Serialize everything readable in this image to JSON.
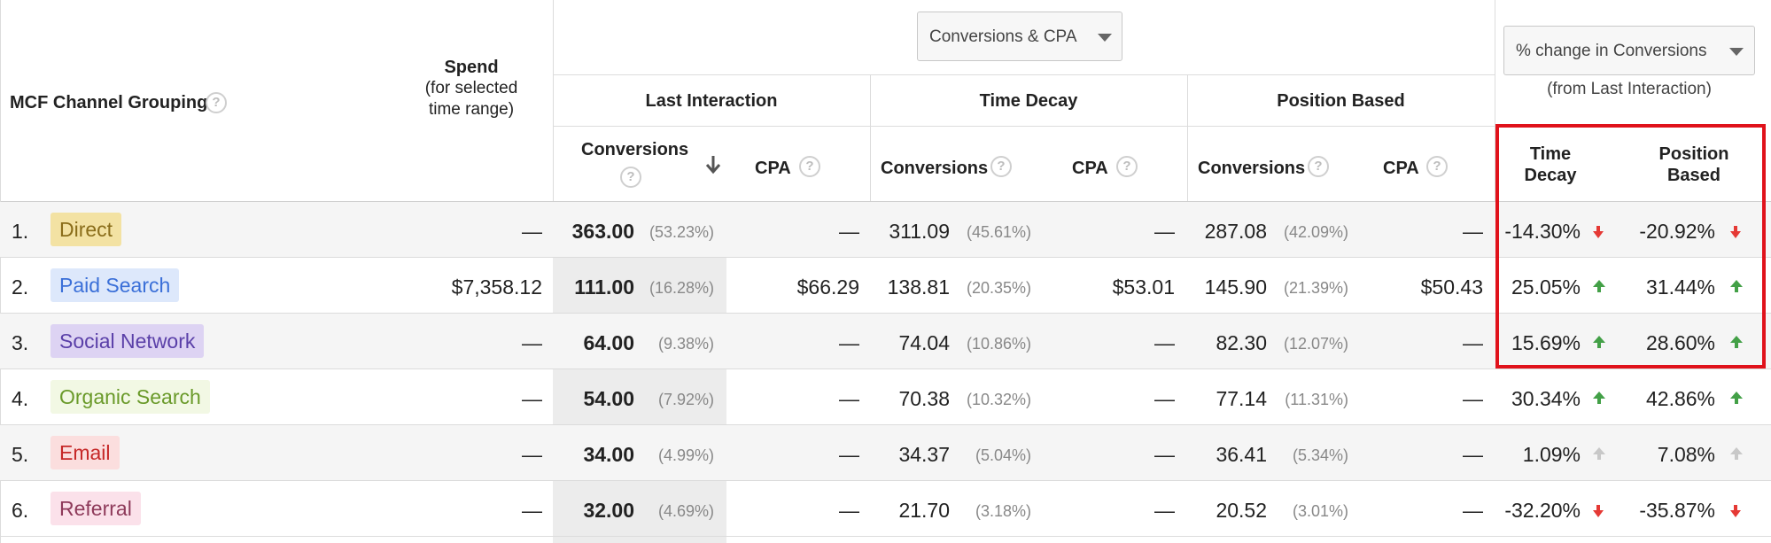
{
  "header": {
    "mcf_label": "MCF Channel Grouping",
    "spend_label": "Spend",
    "spend_sub1": "(for selected",
    "spend_sub2": "time range)",
    "metric_dropdown": "Conversions & CPA",
    "compare_dropdown": "% change in Conversions",
    "compare_sub": "(from Last Interaction)",
    "models": [
      "Last Interaction",
      "Time Decay",
      "Position Based"
    ],
    "conversions_label": "Conversions",
    "cpa_label": "CPA",
    "change_cols": [
      {
        "line1": "Time",
        "line2": "Decay"
      },
      {
        "line1": "Position",
        "line2": "Based"
      }
    ],
    "help_glyph": "?"
  },
  "colors": {
    "highlight_border": "#e0121b",
    "sorted_column_bg": "#ececec",
    "up_arrow": "#43a047",
    "down_arrow": "#e53935",
    "neutral_arrow": "#c8c8c8"
  },
  "rows": [
    {
      "idx": "1.",
      "channel": "Direct",
      "tag_bg": "#f3e2a3",
      "tag_fg": "#8a6d1a",
      "spend": "—",
      "li_conv": "363.00",
      "li_pct": "(53.23%)",
      "li_cpa": "—",
      "td_conv": "311.09",
      "td_pct": "(45.61%)",
      "td_cpa": "—",
      "pb_conv": "287.08",
      "pb_pct": "(42.09%)",
      "pb_cpa": "—",
      "chg_td": "-14.30%",
      "chg_td_dir": "down",
      "chg_pb": "-20.92%",
      "chg_pb_dir": "down"
    },
    {
      "idx": "2.",
      "channel": "Paid Search",
      "tag_bg": "#dde8fb",
      "tag_fg": "#3a6fd8",
      "spend": "$7,358.12",
      "li_conv": "111.00",
      "li_pct": "(16.28%)",
      "li_cpa": "$66.29",
      "td_conv": "138.81",
      "td_pct": "(20.35%)",
      "td_cpa": "$53.01",
      "pb_conv": "145.90",
      "pb_pct": "(21.39%)",
      "pb_cpa": "$50.43",
      "chg_td": "25.05%",
      "chg_td_dir": "up",
      "chg_pb": "31.44%",
      "chg_pb_dir": "up"
    },
    {
      "idx": "3.",
      "channel": "Social Network",
      "tag_bg": "#ddd3f3",
      "tag_fg": "#5a3fa8",
      "spend": "—",
      "li_conv": "64.00",
      "li_pct": "(9.38%)",
      "li_cpa": "—",
      "td_conv": "74.04",
      "td_pct": "(10.86%)",
      "td_cpa": "—",
      "pb_conv": "82.30",
      "pb_pct": "(12.07%)",
      "pb_cpa": "—",
      "chg_td": "15.69%",
      "chg_td_dir": "up",
      "chg_pb": "28.60%",
      "chg_pb_dir": "up"
    },
    {
      "idx": "4.",
      "channel": "Organic Search",
      "tag_bg": "#f2f8e4",
      "tag_fg": "#6a9a2a",
      "spend": "—",
      "li_conv": "54.00",
      "li_pct": "(7.92%)",
      "li_cpa": "—",
      "td_conv": "70.38",
      "td_pct": "(10.32%)",
      "td_cpa": "—",
      "pb_conv": "77.14",
      "pb_pct": "(11.31%)",
      "pb_cpa": "—",
      "chg_td": "30.34%",
      "chg_td_dir": "up",
      "chg_pb": "42.86%",
      "chg_pb_dir": "up"
    },
    {
      "idx": "5.",
      "channel": "Email",
      "tag_bg": "#fbdede",
      "tag_fg": "#c62828",
      "spend": "—",
      "li_conv": "34.00",
      "li_pct": "(4.99%)",
      "li_cpa": "—",
      "td_conv": "34.37",
      "td_pct": "(5.04%)",
      "td_cpa": "—",
      "pb_conv": "36.41",
      "pb_pct": "(5.34%)",
      "pb_cpa": "—",
      "chg_td": "1.09%",
      "chg_td_dir": "neutral",
      "chg_pb": "7.08%",
      "chg_pb_dir": "neutral"
    },
    {
      "idx": "6.",
      "channel": "Referral",
      "tag_bg": "#fbe1ea",
      "tag_fg": "#8e3a5a",
      "spend": "—",
      "li_conv": "32.00",
      "li_pct": "(4.69%)",
      "li_cpa": "—",
      "td_conv": "21.70",
      "td_pct": "(3.18%)",
      "td_cpa": "—",
      "pb_conv": "20.52",
      "pb_pct": "(3.01%)",
      "pb_cpa": "—",
      "chg_td": "-32.20%",
      "chg_td_dir": "down",
      "chg_pb": "-35.87%",
      "chg_pb_dir": "down"
    }
  ]
}
